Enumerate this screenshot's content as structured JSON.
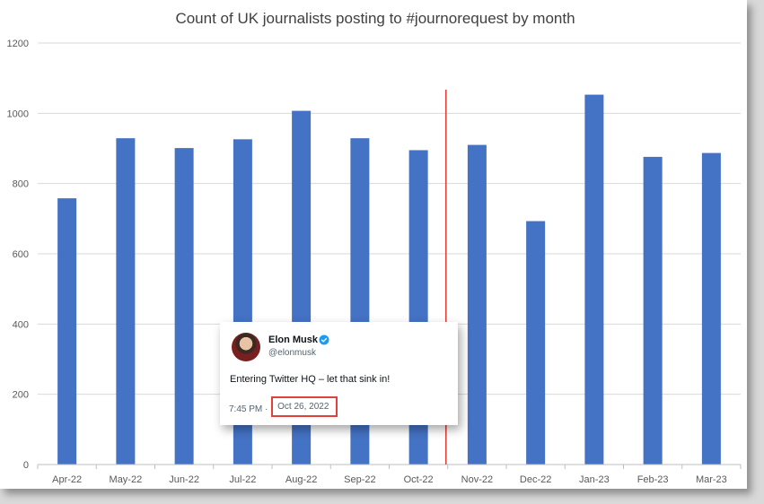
{
  "chart_data": {
    "type": "bar",
    "title": "Count of UK journalists posting to #journorequest by month",
    "categories": [
      "Apr-22",
      "May-22",
      "Jun-22",
      "Jul-22",
      "Aug-22",
      "Sep-22",
      "Oct-22",
      "Nov-22",
      "Dec-22",
      "Jan-23",
      "Feb-23",
      "Mar-23"
    ],
    "values": [
      758,
      929,
      901,
      926,
      1007,
      929,
      895,
      910,
      693,
      1053,
      876,
      887
    ],
    "yticks": [
      0,
      200,
      400,
      600,
      800,
      1000,
      1200
    ],
    "ylim": [
      0,
      1200
    ],
    "grid": true,
    "bar_color": "#4472c4",
    "marker_color": "#e0413a",
    "marker_line": "vertical line between Oct-22 and Nov-22"
  },
  "tweet": {
    "name": "Elon Musk",
    "handle": "@elonmusk",
    "text": "Entering Twitter HQ – let that sink in!",
    "time": "7:45 PM",
    "separator": "·",
    "date": "Oct 26, 2022",
    "verified_color": "#1d9bf0",
    "avatar_icon": "avatar-photo"
  }
}
